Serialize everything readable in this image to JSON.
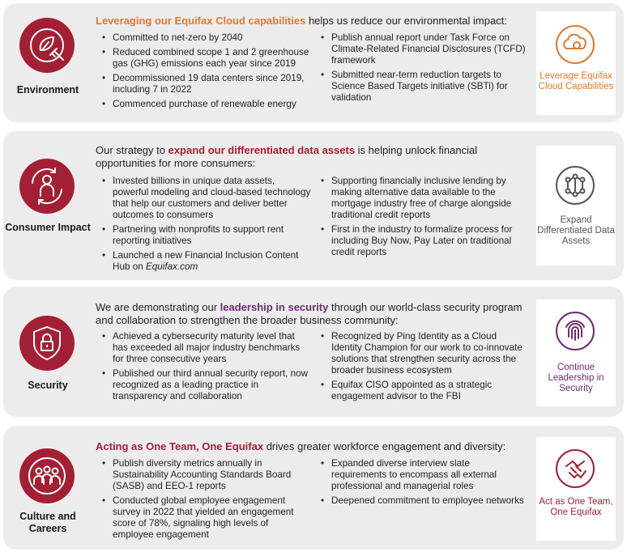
{
  "sections": [
    {
      "name": "Environment",
      "icon": "leaf-plug-icon",
      "headline_pre": "",
      "headline_highlight": "Leveraging our Equifax Cloud capabilities",
      "headline_post": " helps us reduce our environmental impact:",
      "highlight_color": "#e07a2e",
      "col1": [
        "Committed to net-zero by 2040",
        "Reduced combined scope 1 and 2 greenhouse gas (GHG) emissions each year since 2019",
        "Decommissioned 19 data centers since 2019, including 7 in 2022",
        "Commenced purchase of renewable energy"
      ],
      "col2": [
        "Publish annual report under Task Force on Climate-Related Financial Disclosures (TCFD) framework",
        "Submitted near-term reduction targets to Science Based Targets initiative (SBTi) for validation"
      ],
      "right_label": "Leverage Equifax Cloud Capabilities",
      "right_icon": "cloud-gear-icon",
      "right_color": "#e07a2e"
    },
    {
      "name": "Consumer Impact",
      "icon": "person-cycle-icon",
      "headline_pre": "Our strategy to ",
      "headline_highlight": "expand our differentiated data assets",
      "headline_post": " is helping unlock financial opportunities for more consumers:",
      "highlight_color": "#a31f34",
      "col1": [
        "Invested billions in unique data assets, powerful modeling and cloud-based technology that help our customers and deliver better outcomes to consumers",
        "Partnering with nonprofits to support rent reporting initiatives",
        "Launched a new Financial Inclusion Content Hub on "
      ],
      "col1_last_italic": "Equifax.com",
      "col2": [
        "Supporting financially inclusive lending by making alternative data available to the mortgage industry free of charge alongside traditional credit reports",
        "First in the industry to formalize process for including Buy Now, Pay Later on traditional credit reports"
      ],
      "right_label": "Expand Differentiated Data Assets",
      "right_icon": "network-nodes-icon",
      "right_color": "#555555"
    },
    {
      "name": "Security",
      "icon": "shield-lock-icon",
      "headline_pre": "We are demonstrating our ",
      "headline_highlight": "leadership in security",
      "headline_post": " through our world-class security program and collaboration to strengthen the broader business community:",
      "highlight_color": "#6b2c6e",
      "col1": [
        "Achieved a cybersecurity maturity level that has exceeded all major industry benchmarks for three consecutive years",
        "Published our third annual security report, now recognized as a leading practice in transparency and collaboration"
      ],
      "col2": [
        "Recognized by Ping Identity as a Cloud Identity Champion for our work to co-innovate solutions that strengthen security across the broader business ecosystem",
        "Equifax CISO appointed as a strategic engagement advisor to the FBI"
      ],
      "right_label": "Continue Leadership in Security",
      "right_icon": "fingerprint-icon",
      "right_color": "#6b2c6e"
    },
    {
      "name": "Culture and Careers",
      "icon": "team-people-icon",
      "headline_pre": "",
      "headline_highlight": "Acting as One Team, One Equifax",
      "headline_post": " drives greater workforce engagement and diversity:",
      "highlight_color": "#a31f34",
      "col1": [
        "Publish diversity metrics annually in Sustainability Accounting Standards Board (SASB) and EEO-1 reports",
        "Conducted global employee engagement survey in 2022 that yielded an engagement score of 78%, signaling high levels of employee engagement"
      ],
      "col2": [
        "Expanded diverse interview slate requirements to encompass all external professional and managerial roles",
        "Deepened commitment to employee networks"
      ],
      "right_label": "Act as One Team, One Equifax",
      "right_icon": "hands-together-icon",
      "right_color": "#a31f34"
    }
  ]
}
